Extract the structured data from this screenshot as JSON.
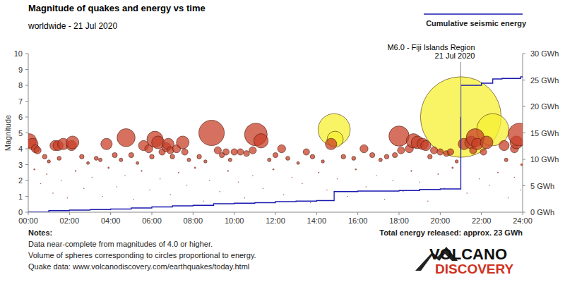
{
  "chart_data": {
    "type": "bubble",
    "title": "Magnitude of quakes and energy vs time",
    "subtitle": "worldwide - 21 Jul 2020",
    "y_label": "Magnitude",
    "xlim": [
      0,
      24
    ],
    "xticks": [
      {
        "value": 0,
        "label": "00:00"
      },
      {
        "value": 2,
        "label": "02:00"
      },
      {
        "value": 4,
        "label": "04:00"
      },
      {
        "value": 6,
        "label": "06:00"
      },
      {
        "value": 8,
        "label": "08:00"
      },
      {
        "value": 10,
        "label": "10:00"
      },
      {
        "value": 12,
        "label": "12:00"
      },
      {
        "value": 14,
        "label": "14:00"
      },
      {
        "value": 16,
        "label": "16:00"
      },
      {
        "value": 18,
        "label": "18:00"
      },
      {
        "value": 20,
        "label": "20:00"
      },
      {
        "value": 22,
        "label": "22:00"
      },
      {
        "value": 24,
        "label": "24:00"
      }
    ],
    "ylim": [
      0,
      10
    ],
    "yticks": [
      0,
      1,
      2,
      3,
      4,
      5,
      6,
      7,
      8,
      9,
      10
    ],
    "y2lim": [
      0,
      30
    ],
    "y2ticks": [
      {
        "value": 0,
        "label": "0 GWh"
      },
      {
        "value": 5,
        "label": "5 GWh"
      },
      {
        "value": 10,
        "label": "10 GWh"
      },
      {
        "value": 15,
        "label": "15 GWh"
      },
      {
        "value": 20,
        "label": "20 GWh"
      },
      {
        "value": 25,
        "label": "25 GWh"
      },
      {
        "value": 30,
        "label": "30 GWh"
      }
    ],
    "grid": false,
    "legend": "top-right",
    "series": [
      {
        "type": "bubble",
        "color": "#f5f032",
        "x": [
          14.85,
          14.9,
          21.0,
          22.55
        ],
        "values": [
          5.2,
          4.6,
          6.0,
          5.2
        ]
      },
      {
        "type": "bubble",
        "color": "#c8402a",
        "x": [
          0.05,
          0.2,
          0.35,
          0.45,
          1.3,
          1.45,
          1.7,
          2.1,
          2.15,
          3.8,
          4.75,
          5.6,
          5.85,
          6.15,
          6.3,
          6.5,
          6.7,
          6.8,
          6.9,
          7.2,
          7.5,
          7.6,
          8.9,
          9.2,
          9.6,
          10.0,
          10.3,
          10.9,
          11.05,
          11.3,
          12.3,
          13.5,
          14.7,
          16.3,
          18.0,
          18.1,
          18.5,
          18.7,
          18.9,
          19.15,
          19.3,
          19.7,
          20.0,
          20.3,
          20.5,
          21.15,
          21.5,
          21.6,
          21.7,
          21.8,
          22.1,
          22.25,
          23.1,
          23.6,
          23.7,
          23.85,
          0.8,
          1.0,
          1.5,
          2.6,
          2.9,
          3.3,
          3.5,
          4.2,
          4.5,
          5.0,
          5.3,
          6.0,
          7.0,
          7.8,
          8.3,
          8.6,
          9.4,
          9.8,
          10.6,
          11.7,
          12.0,
          12.6,
          13.1,
          13.8,
          14.3,
          15.3,
          15.8,
          16.7,
          17.1,
          17.4,
          17.8,
          19.5,
          20.8,
          23.2,
          23.95
        ],
        "values": [
          4.5,
          4.3,
          4.0,
          3.9,
          4.2,
          4.2,
          4.3,
          4.2,
          4.4,
          4.3,
          4.7,
          4.2,
          4.0,
          4.6,
          4.4,
          3.8,
          4.1,
          4.3,
          3.9,
          4.0,
          4.4,
          3.8,
          5.0,
          3.9,
          3.8,
          3.8,
          3.8,
          3.9,
          4.9,
          4.5,
          4.0,
          3.8,
          4.3,
          4.0,
          4.8,
          3.9,
          4.0,
          4.5,
          4.4,
          4.3,
          4.2,
          3.9,
          3.8,
          3.7,
          3.8,
          4.3,
          4.4,
          3.9,
          4.7,
          4.3,
          3.8,
          4.4,
          4.2,
          4.0,
          4.4,
          4.9,
          3.5,
          3.2,
          3.4,
          3.5,
          3.1,
          3.4,
          3.3,
          3.6,
          3.3,
          3.6,
          3.1,
          3.5,
          3.5,
          3.3,
          3.5,
          3.2,
          3.6,
          3.3,
          3.7,
          3.3,
          3.6,
          3.4,
          3.1,
          3.5,
          3.2,
          3.5,
          3.4,
          3.6,
          3.3,
          3.5,
          3.6,
          3.5,
          3.2,
          3.3,
          3.0
        ]
      },
      {
        "type": "bubble",
        "color": "#a0524a",
        "x": [
          0.3,
          0.6,
          0.9,
          1.2,
          1.6,
          1.9,
          2.3,
          2.7,
          3.1,
          3.6,
          3.9,
          4.3,
          4.7,
          5.1,
          5.5,
          5.9,
          6.4,
          6.9,
          7.3,
          7.7,
          8.1,
          8.5,
          8.8,
          9.3,
          9.7,
          10.2,
          10.5,
          10.9,
          11.4,
          11.9,
          12.4,
          12.8,
          13.3,
          13.7,
          14.1,
          14.5,
          15.0,
          15.5,
          15.9,
          16.4,
          16.9,
          17.3,
          17.7,
          18.2,
          18.6,
          19.0,
          19.4,
          19.9,
          20.2,
          20.6,
          21.3,
          21.9,
          22.4,
          22.8,
          23.3,
          23.6,
          23.9
        ],
        "values": [
          2.7,
          1.8,
          2.4,
          1.2,
          2.0,
          0.9,
          2.6,
          1.5,
          2.2,
          1.0,
          2.8,
          1.6,
          2.3,
          0.8,
          2.6,
          1.4,
          2.1,
          1.1,
          2.5,
          1.7,
          2.8,
          0.7,
          2.0,
          1.3,
          2.6,
          1.9,
          0.9,
          2.3,
          1.5,
          2.7,
          1.1,
          2.2,
          1.8,
          0.6,
          2.5,
          1.4,
          2.1,
          1.0,
          2.7,
          1.6,
          2.3,
          0.8,
          2.0,
          1.3,
          2.6,
          1.9,
          0.7,
          2.4,
          1.5,
          2.8,
          1.2,
          2.1,
          1.7,
          2.5,
          0.9,
          2.2,
          1.4
        ]
      },
      {
        "type": "line",
        "name": "Cumulative seismic energy",
        "axis": "y2",
        "color": "#1a1ab0",
        "line_style": "step",
        "x": [
          0,
          1,
          2,
          3,
          4,
          5,
          6,
          7,
          8,
          9,
          10,
          11,
          12,
          13,
          14,
          14.85,
          16,
          18,
          19,
          20,
          21.0,
          22,
          22.55,
          23,
          23.9,
          24
        ],
        "values": [
          0,
          0.3,
          0.4,
          0.5,
          0.6,
          0.8,
          1.0,
          1.2,
          1.3,
          1.6,
          1.7,
          1.8,
          2.0,
          2.1,
          2.2,
          3.9,
          4.0,
          4.1,
          4.3,
          4.4,
          24.0,
          24.4,
          25.2,
          25.3,
          25.6,
          25.7
        ]
      }
    ],
    "annotations": [
      {
        "text": [
          "M6.0 - Fiji Islands Region",
          "21 Jul 2020"
        ],
        "x": 21.0,
        "y": 6.0
      }
    ],
    "notes": [
      "Notes:",
      "Data near-complete from magnitudes of 4.0 or higher.",
      "Volume of spheres corresponding to circles proportional to energy.",
      "Quake data: www.volcanodiscovery.com/earthquakes/today.html"
    ],
    "total_energy": "Total energy released: approx. 23 GWh",
    "logo": [
      "VOLCANO",
      "DISCOVERY"
    ]
  }
}
